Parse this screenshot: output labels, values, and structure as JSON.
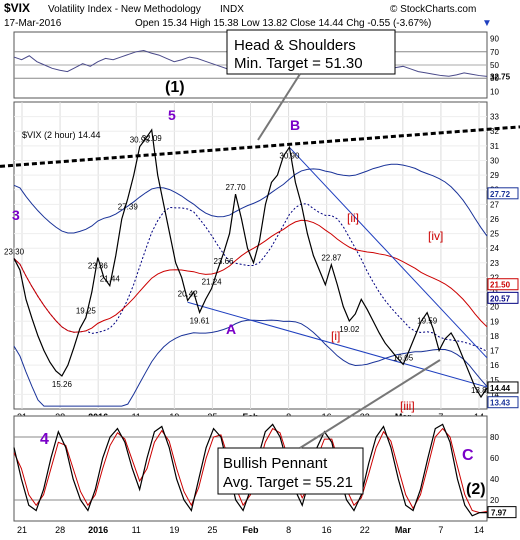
{
  "header": {
    "symbol": "$VIX",
    "name": "Volatility Index - New Methodology",
    "exchange": "INDX",
    "watermark": "© StockCharts.com",
    "date": "17-Mar-2016",
    "quote": "Open 15.34  High 15.38  Low 13.82  Close 14.44  Chg -0.55 (-3.67%)",
    "quote_arrow": "▼"
  },
  "colors": {
    "price": "#000000",
    "sma_short": "#000080",
    "sma_long": "#cc0000",
    "channel": "#1f3fbf",
    "purple": "#7a00c8",
    "red_label": "#cc0000",
    "bb": "#1a3399",
    "stoch_k": "#000000",
    "stoch_d": "#cc0000"
  },
  "chart_data": [
    {
      "type": "line",
      "name": "RSI",
      "right_ticks": [
        10,
        30,
        50,
        70,
        90
      ],
      "current_value": 32.75,
      "ylim": [
        0,
        100
      ],
      "values": [
        62,
        58,
        64,
        55,
        50,
        45,
        42,
        40,
        46,
        52,
        48,
        55,
        60,
        58,
        62,
        66,
        70,
        72,
        68,
        65,
        60,
        55,
        58,
        62,
        60,
        56,
        52,
        48,
        44,
        46,
        50,
        52,
        55,
        58,
        60,
        62,
        58,
        55,
        52,
        56,
        60,
        62,
        60,
        58,
        55,
        50,
        46,
        44,
        40,
        42,
        46,
        48,
        44,
        40,
        38,
        36,
        34,
        33,
        35,
        38,
        36,
        34,
        32.75
      ]
    },
    {
      "type": "line",
      "title": "$VIX (2 hour) 14.44",
      "ylim": [
        13,
        34
      ],
      "right_ticks": [
        14,
        15,
        16,
        17,
        18,
        19,
        20,
        21,
        22,
        23,
        24,
        25,
        26,
        27,
        28,
        29,
        30,
        31,
        32,
        33
      ],
      "right_badges": [
        {
          "value": 27.72,
          "text": "27.72",
          "kind": "bb"
        },
        {
          "value": 21.5,
          "text": "21.50",
          "kind": "sma_long"
        },
        {
          "value": 20.57,
          "text": "20.57",
          "kind": "sma_short"
        },
        {
          "value": 14.44,
          "text": "14.44",
          "kind": "price"
        },
        {
          "value": 13.43,
          "text": "13.43",
          "kind": "bb"
        }
      ],
      "x_ticks": [
        "21",
        "28",
        "2016",
        "11",
        "19",
        "25",
        "Feb",
        "8",
        "16",
        "22",
        "Mar",
        "7",
        "14"
      ],
      "close": [
        23.3,
        22.5,
        20.5,
        19.2,
        18.0,
        17.0,
        16.2,
        15.6,
        15.26,
        16.0,
        17.2,
        18.5,
        19.25,
        21.0,
        23.36,
        22.0,
        21.44,
        23.5,
        26.0,
        27.39,
        29.0,
        30.95,
        31.5,
        32.09,
        29.0,
        27.0,
        25.0,
        23.0,
        22.0,
        20.42,
        21.0,
        19.61,
        20.5,
        21.24,
        22.5,
        23.66,
        25.0,
        27.7,
        26.0,
        24.0,
        23.0,
        24.5,
        27.0,
        28.5,
        29.0,
        30.3,
        30.9,
        28.5,
        27.0,
        25.0,
        23.5,
        22.5,
        21.5,
        22.87,
        21.5,
        20.0,
        19.02,
        19.5,
        20.5,
        19.8,
        19.0,
        18.2,
        17.5,
        17.0,
        16.5,
        16.05,
        17.0,
        18.0,
        19.0,
        19.59,
        18.5,
        17.0,
        17.8,
        18.2,
        17.5,
        16.5,
        15.5,
        14.5,
        13.82,
        14.44
      ],
      "annotations": [
        {
          "text": "Head & Shoulders\nMin. Target = 51.30",
          "kind": "box"
        },
        {
          "text": "(1)",
          "kind": "wave_black"
        },
        {
          "text": "5",
          "kind": "wave_purple"
        },
        {
          "text": "3",
          "kind": "wave_purple"
        },
        {
          "text": "B",
          "kind": "wave_purple"
        },
        {
          "text": "A",
          "kind": "wave_purple"
        },
        {
          "text": "[ii]",
          "kind": "wave_red"
        },
        {
          "text": "[iv]",
          "kind": "wave_red"
        },
        {
          "text": "[i]",
          "kind": "wave_red"
        },
        {
          "text": "[iii]",
          "kind": "wave_red"
        },
        {
          "text": "[v]",
          "kind": "wave_red"
        }
      ],
      "price_labels": [
        "23.30",
        "15.26",
        "19.25",
        "23.36",
        "21.44",
        "27.39",
        "30.95",
        "32.09",
        "20.42",
        "19.61",
        "21.24",
        "23.66",
        "27.70",
        "30.90",
        "22.87",
        "19.02",
        "16.05",
        "19.59",
        "13.82"
      ]
    },
    {
      "type": "line",
      "name": "Stochastic",
      "ylim": [
        0,
        100
      ],
      "right_ticks": [
        20,
        40,
        60,
        80
      ],
      "current_value": 7.97,
      "x_ticks": [
        "21",
        "28",
        "2016",
        "11",
        "19",
        "25",
        "Feb",
        "8",
        "16",
        "22",
        "Mar",
        "7",
        "14"
      ],
      "k": [
        70,
        40,
        15,
        10,
        30,
        60,
        85,
        70,
        40,
        20,
        10,
        30,
        60,
        80,
        88,
        75,
        50,
        30,
        60,
        85,
        90,
        70,
        40,
        20,
        10,
        40,
        70,
        88,
        80,
        50,
        20,
        10,
        30,
        60,
        85,
        92,
        80,
        55,
        30,
        15,
        40,
        70,
        85,
        75,
        45,
        20,
        10,
        25,
        55,
        80,
        90,
        70,
        40,
        15,
        10,
        30,
        60,
        88,
        92,
        75,
        40,
        15,
        5,
        8,
        7.97
      ],
      "d": [
        65,
        50,
        25,
        15,
        25,
        50,
        75,
        72,
        50,
        28,
        15,
        25,
        50,
        72,
        84,
        78,
        58,
        38,
        50,
        75,
        86,
        76,
        50,
        28,
        15,
        32,
        60,
        80,
        82,
        60,
        32,
        15,
        25,
        50,
        75,
        88,
        84,
        62,
        38,
        22,
        35,
        60,
        78,
        78,
        55,
        30,
        15,
        22,
        45,
        70,
        85,
        76,
        50,
        25,
        12,
        25,
        52,
        80,
        88,
        80,
        52,
        25,
        10,
        8,
        9
      ]
    }
  ],
  "labels": {
    "wave_1": "(1)",
    "wave_5": "5",
    "wave_3": "3",
    "wave_B": "B",
    "wave_A": "A",
    "wave_ii": "[ii]",
    "wave_iv": "[iv]",
    "wave_i": "[i]",
    "wave_iii": "[iii]",
    "wave_v": "[v]",
    "wave_4": "4",
    "wave_C": "C",
    "wave_2": "(2)",
    "hs_line1": "Head & Shoulders",
    "hs_line2": "Min. Target = 51.30",
    "bp_line1": "Bullish Pennant",
    "bp_line2": "Avg. Target = 55.21"
  }
}
